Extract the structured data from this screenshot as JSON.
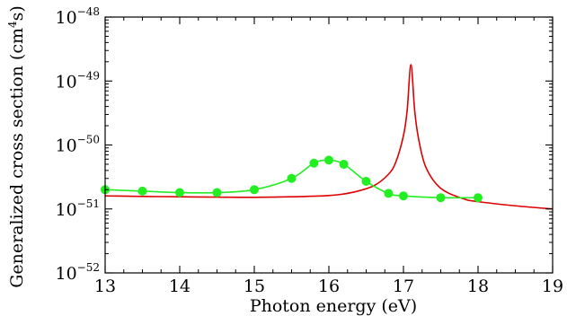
{
  "chart_data": {
    "type": "line",
    "title": "",
    "xlabel": "Photon energy (eV)",
    "ylabel": {
      "prefix": "Generalized cross section (cm",
      "exp": "4",
      "suffix": "s)"
    },
    "xlim": [
      13,
      19
    ],
    "ylim": [
      1e-52,
      1e-48
    ],
    "yscale": "log",
    "grid": false,
    "legend": "none",
    "x_ticks": [
      "13",
      "14",
      "15",
      "16",
      "17",
      "18",
      "19"
    ],
    "y_ticks": [
      {
        "base": "10",
        "exp": "−48",
        "value": 1e-48
      },
      {
        "base": "10",
        "exp": "−49",
        "value": 1e-49
      },
      {
        "base": "10",
        "exp": "−50",
        "value": 1e-50
      },
      {
        "base": "10",
        "exp": "−51",
        "value": 1e-51
      },
      {
        "base": "10",
        "exp": "−52",
        "value": 1e-52
      }
    ],
    "series": [
      {
        "kind": "line",
        "color": "#dd0000",
        "x": [
          13.0,
          13.5,
          14.0,
          14.5,
          15.0,
          15.5,
          16.0,
          16.3,
          16.6,
          16.8,
          16.9,
          17.0,
          17.05,
          17.1,
          17.15,
          17.2,
          17.3,
          17.5,
          17.8,
          18.0,
          18.5,
          19.0
        ],
        "y": [
          1.6e-51,
          1.57e-51,
          1.55e-51,
          1.53e-51,
          1.52e-51,
          1.55e-51,
          1.62e-51,
          1.8e-51,
          2.3e-51,
          3.5e-51,
          5.5e-51,
          1.4e-50,
          3.5e-50,
          1.8e-49,
          3.5e-50,
          1.3e-50,
          4.5e-51,
          2.1e-51,
          1.45e-51,
          1.3e-51,
          1.12e-51,
          1e-51
        ]
      },
      {
        "kind": "line+markers",
        "color": "#22ee22",
        "x": [
          13.0,
          13.5,
          14.0,
          14.5,
          15.0,
          15.5,
          15.8,
          16.0,
          16.2,
          16.5,
          16.8,
          17.0,
          17.5,
          18.0
        ],
        "y": [
          2e-51,
          1.9e-51,
          1.8e-51,
          1.8e-51,
          2e-51,
          3e-51,
          5.2e-51,
          5.8e-51,
          5e-51,
          2.7e-51,
          1.75e-51,
          1.6e-51,
          1.5e-51,
          1.5e-51
        ]
      }
    ]
  }
}
